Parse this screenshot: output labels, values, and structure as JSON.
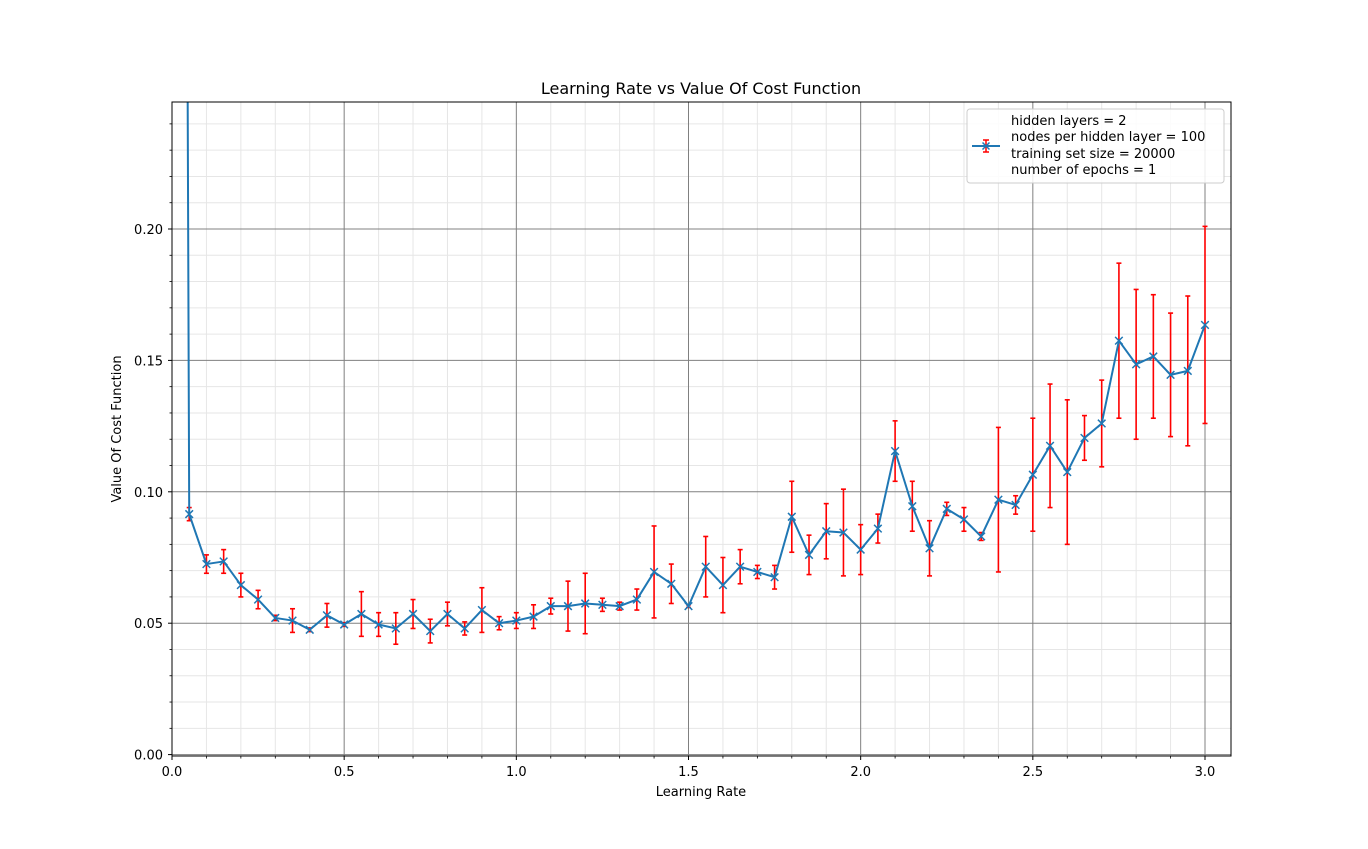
{
  "chart_data": {
    "type": "line",
    "title": "Learning Rate vs Value Of Cost Function",
    "xlabel": "Learning Rate",
    "ylabel": "Value Of Cost Function",
    "xlim": [
      0.0,
      3.075
    ],
    "ylim": [
      -0.002,
      0.2475
    ],
    "x_ticks": [
      0.0,
      0.5,
      1.0,
      1.5,
      2.0,
      2.5,
      3.0
    ],
    "x_tick_labels": [
      "0.0",
      "0.5",
      "1.0",
      "1.5",
      "2.0",
      "2.5",
      "3.0"
    ],
    "y_ticks": [
      0.0,
      0.05,
      0.1,
      0.15,
      0.2
    ],
    "y_tick_labels": [
      "0.00",
      "0.05",
      "0.10",
      "0.15",
      "0.20"
    ],
    "grid": "major and minor",
    "legend_position": "top-right",
    "legend_lines": [
      "hidden layers = 2",
      "nodes per hidden layer = 100",
      "training set size = 20000",
      "number of epochs = 1"
    ],
    "colors": {
      "line": "#1f77b4",
      "error_bar": "#ff0000",
      "major_grid": "#808080",
      "minor_grid": "#e6e6e6"
    },
    "marker": "x",
    "series": [
      {
        "x": [
          0.05,
          0.1,
          0.15,
          0.2,
          0.25,
          0.3,
          0.35,
          0.4,
          0.45,
          0.5,
          0.55,
          0.6,
          0.65,
          0.7,
          0.75,
          0.8,
          0.85,
          0.9,
          0.95,
          1.0,
          1.05,
          1.1,
          1.15,
          1.2,
          1.25,
          1.3,
          1.35,
          1.4,
          1.45,
          1.5,
          1.55,
          1.6,
          1.65,
          1.7,
          1.75,
          1.8,
          1.85,
          1.9,
          1.95,
          2.0,
          2.05,
          2.1,
          2.15,
          2.2,
          2.25,
          2.3,
          2.35,
          2.4,
          2.45,
          2.5,
          2.55,
          2.6,
          2.65,
          2.7,
          2.75,
          2.8,
          2.85,
          2.9,
          2.95,
          3.0
        ],
        "y": [
          0.0915,
          0.0725,
          0.0735,
          0.0645,
          0.059,
          0.052,
          0.051,
          0.0475,
          0.053,
          0.0495,
          0.0535,
          0.0495,
          0.048,
          0.0535,
          0.047,
          0.0535,
          0.048,
          0.055,
          0.05,
          0.051,
          0.0525,
          0.0565,
          0.0565,
          0.0575,
          0.057,
          0.0565,
          0.059,
          0.0695,
          0.065,
          0.0565,
          0.0715,
          0.0645,
          0.0715,
          0.0695,
          0.0675,
          0.0905,
          0.076,
          0.085,
          0.0845,
          0.078,
          0.086,
          0.1155,
          0.0945,
          0.0785,
          0.0935,
          0.0895,
          0.083,
          0.097,
          0.095,
          0.1065,
          0.1175,
          0.1075,
          0.1205,
          0.126,
          0.1575,
          0.1485,
          0.1515,
          0.1445,
          0.146,
          0.1635
        ],
        "err": [
          0.0025,
          0.0035,
          0.0045,
          0.0045,
          0.0035,
          0.001,
          0.0045,
          0.0007,
          0.0045,
          0.0007,
          0.0085,
          0.0045,
          0.006,
          0.0055,
          0.0045,
          0.0045,
          0.0025,
          0.0085,
          0.0025,
          0.003,
          0.0045,
          0.003,
          0.0095,
          0.0115,
          0.0025,
          0.0015,
          0.004,
          0.0175,
          0.0075,
          0.0005,
          0.0115,
          0.0105,
          0.0065,
          0.0025,
          0.0045,
          0.0135,
          0.0075,
          0.0105,
          0.0165,
          0.0095,
          0.0055,
          0.0115,
          0.0095,
          0.0105,
          0.0025,
          0.0045,
          0.0015,
          0.0275,
          0.0035,
          0.0215,
          0.0235,
          0.0275,
          0.0085,
          0.0165,
          0.0295,
          0.0285,
          0.0235,
          0.0235,
          0.0285,
          0.0375
        ],
        "initial_point_off_scale": {
          "x": 0.0,
          "y_exceeds_ylim": true
        }
      }
    ]
  }
}
